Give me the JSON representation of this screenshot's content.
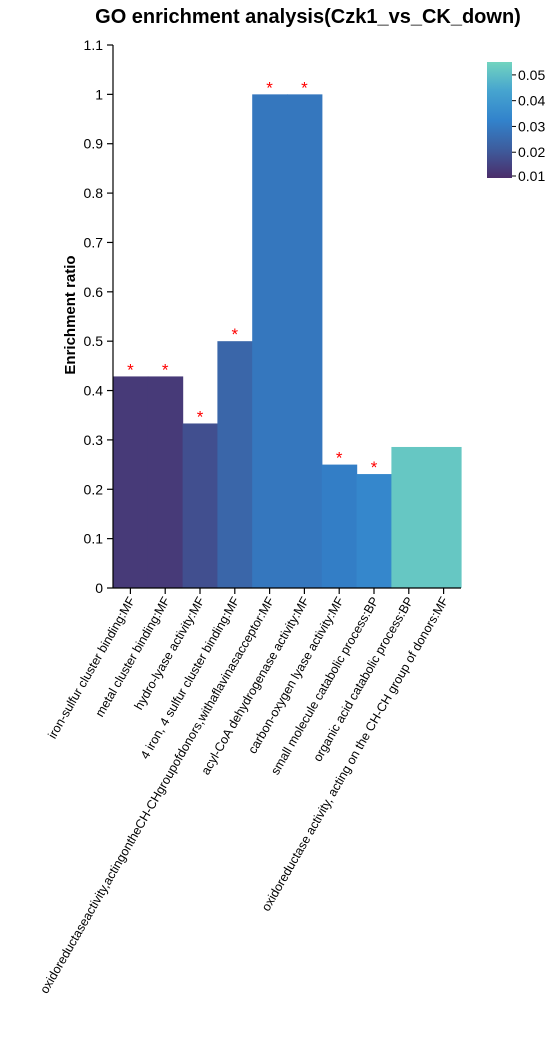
{
  "chart_data": {
    "type": "bar",
    "title": "GO enrichment analysis(Czk1_vs_CK_down)",
    "ylabel": "Enrichment ratio",
    "xlabel": "",
    "ylim": [
      0,
      1.1
    ],
    "yticks": [
      0,
      0.1,
      0.2,
      0.3,
      0.4,
      0.5,
      0.6,
      0.7,
      0.8,
      0.9,
      1,
      1.1
    ],
    "ytick_labels": [
      "0",
      "0.1",
      "0.2",
      "0.3",
      "0.4",
      "0.5",
      "0.6",
      "0.7",
      "0.8",
      "0.9",
      "1",
      "1.1"
    ],
    "categories": [
      "iron-sulfur cluster binding:MF",
      "metal cluster binding:MF",
      "hydro-lyase activity:MF",
      "4 iron, 4 sulfur cluster binding:MF",
      "oxidoreductaseactivity,actingontheCH-CHgroupofdonors,withaflavinasacceptor:MF",
      "acyl-CoA dehydrogenase activity:MF",
      "carbon-oxygen lyase activity:MF",
      "small molecule catabolic process:BP",
      "organic acid catabolic process:BP",
      "oxidoreductase activity, acting on the CH-CH group of donors:MF"
    ],
    "values": [
      0.4286,
      0.4286,
      0.3333,
      0.5,
      1.0,
      1.0,
      0.25,
      0.2308,
      0.2857,
      0.2857
    ],
    "pvalues": [
      0.013,
      0.013,
      0.018,
      0.024,
      0.029,
      0.029,
      0.031,
      0.034,
      0.052,
      0.052
    ],
    "significant": [
      true,
      true,
      true,
      true,
      true,
      true,
      true,
      true,
      false,
      false
    ],
    "significance_marker": "*",
    "colorbar": {
      "min": 0.01,
      "max": 0.055,
      "ticks": [
        0.01,
        0.02,
        0.03,
        0.04,
        0.05
      ],
      "tick_labels": [
        "0.01",
        "0.02",
        "0.03",
        "0.04",
        "0.05"
      ],
      "colors": [
        "#4b2d6a",
        "#3d5d9e",
        "#3283cc",
        "#46a4cf",
        "#72d4bf"
      ]
    },
    "marker_color": "#ff0000",
    "grid": false
  }
}
